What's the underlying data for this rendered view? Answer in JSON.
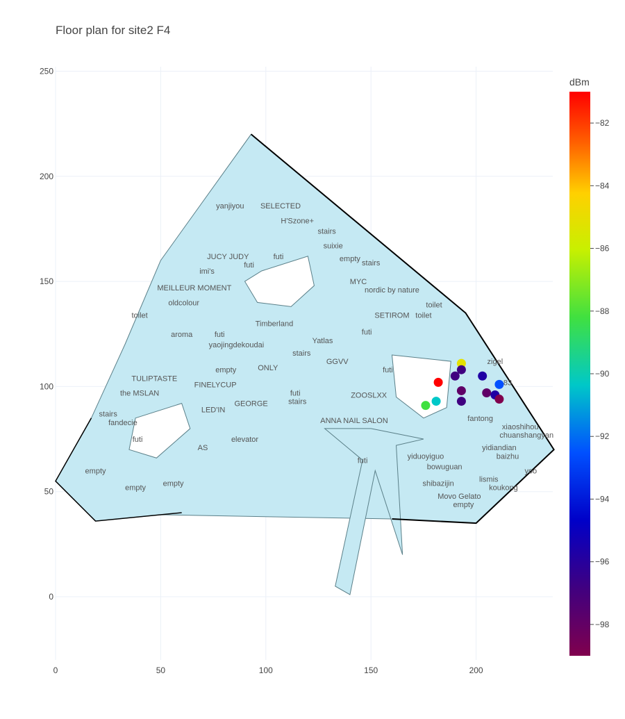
{
  "title": "Floor plan for site2 F4",
  "colorbar": {
    "title": "dBm",
    "min": -99,
    "max": -81,
    "ticks": [
      -82,
      -84,
      -86,
      -88,
      -90,
      -92,
      -94,
      -96,
      -98
    ],
    "tick_labels": [
      "−82",
      "−84",
      "−86",
      "−88",
      "−90",
      "−92",
      "−94",
      "−96",
      "−98"
    ]
  },
  "axes": {
    "x_ticks": [
      0,
      50,
      100,
      150,
      200
    ],
    "y_ticks": [
      0,
      50,
      100,
      150,
      200,
      250
    ],
    "xlim": [
      0,
      236
    ],
    "ylim": [
      -30,
      252
    ]
  },
  "boundary": [
    [
      0,
      55
    ],
    [
      17,
      85
    ],
    [
      33,
      120
    ],
    [
      50,
      160
    ],
    [
      93,
      220
    ],
    [
      195,
      135
    ],
    [
      237,
      70
    ],
    [
      200,
      35
    ],
    [
      160,
      37
    ],
    [
      50,
      39
    ],
    [
      19,
      36
    ],
    [
      0,
      55
    ]
  ],
  "corridor_extension": [
    [
      150,
      80
    ],
    [
      175,
      75
    ],
    [
      162,
      72
    ],
    [
      165,
      20
    ],
    [
      152,
      60
    ],
    [
      140,
      1
    ],
    [
      133,
      5
    ],
    [
      146,
      65
    ],
    [
      128,
      80
    ]
  ],
  "shops": [
    {
      "name": "yanjiyou",
      "x": 83,
      "y": 186
    },
    {
      "name": "SELECTED",
      "x": 107,
      "y": 186
    },
    {
      "name": "H'Szone+",
      "x": 115,
      "y": 179
    },
    {
      "name": "stairs",
      "x": 129,
      "y": 174
    },
    {
      "name": "suixie",
      "x": 132,
      "y": 167
    },
    {
      "name": "empty",
      "x": 140,
      "y": 161
    },
    {
      "name": "stairs",
      "x": 150,
      "y": 159
    },
    {
      "name": "JUCY JUDY",
      "x": 82,
      "y": 162
    },
    {
      "name": "futi",
      "x": 92,
      "y": 158
    },
    {
      "name": "futi",
      "x": 106,
      "y": 162
    },
    {
      "name": "imi's",
      "x": 72,
      "y": 155
    },
    {
      "name": "MYC",
      "x": 144,
      "y": 150
    },
    {
      "name": "nordic by nature",
      "x": 160,
      "y": 146
    },
    {
      "name": "MEILLEUR MOMENT",
      "x": 66,
      "y": 147
    },
    {
      "name": "oldcolour",
      "x": 61,
      "y": 140
    },
    {
      "name": "toilet",
      "x": 40,
      "y": 134
    },
    {
      "name": "toilet",
      "x": 180,
      "y": 139
    },
    {
      "name": "SETIROM",
      "x": 160,
      "y": 134
    },
    {
      "name": "toilet",
      "x": 175,
      "y": 134
    },
    {
      "name": "Timberland",
      "x": 104,
      "y": 130
    },
    {
      "name": "aroma",
      "x": 60,
      "y": 125
    },
    {
      "name": "futi",
      "x": 78,
      "y": 125
    },
    {
      "name": "futi",
      "x": 148,
      "y": 126
    },
    {
      "name": "Yatlas",
      "x": 127,
      "y": 122
    },
    {
      "name": "yaojingdekoudai",
      "x": 86,
      "y": 120
    },
    {
      "name": "stairs",
      "x": 117,
      "y": 116
    },
    {
      "name": "GGVV",
      "x": 134,
      "y": 112
    },
    {
      "name": "empty",
      "x": 81,
      "y": 108
    },
    {
      "name": "ONLY",
      "x": 101,
      "y": 109
    },
    {
      "name": "futi",
      "x": 158,
      "y": 108
    },
    {
      "name": "zigel",
      "x": 209,
      "y": 112
    },
    {
      "name": "TULIPTASTE",
      "x": 47,
      "y": 104
    },
    {
      "name": "FINELYCUP",
      "x": 76,
      "y": 101
    },
    {
      "name": "the MSLAN",
      "x": 40,
      "y": 97
    },
    {
      "name": "futi",
      "x": 114,
      "y": 97
    },
    {
      "name": "ZOOSLXX",
      "x": 149,
      "y": 96
    },
    {
      "name": "83",
      "x": 215,
      "y": 102
    },
    {
      "name": "GEORGE",
      "x": 93,
      "y": 92
    },
    {
      "name": "stairs",
      "x": 115,
      "y": 93
    },
    {
      "name": "LED'IN",
      "x": 75,
      "y": 89
    },
    {
      "name": "stairs",
      "x": 25,
      "y": 87
    },
    {
      "name": "fandecie",
      "x": 32,
      "y": 83
    },
    {
      "name": "ANNA NAIL SALON",
      "x": 142,
      "y": 84
    },
    {
      "name": "fantong",
      "x": 202,
      "y": 85
    },
    {
      "name": "xiaoshihou",
      "x": 221,
      "y": 81
    },
    {
      "name": "chuanshangyan",
      "x": 224,
      "y": 77
    },
    {
      "name": "futi",
      "x": 39,
      "y": 75
    },
    {
      "name": "elevator",
      "x": 90,
      "y": 75
    },
    {
      "name": "AS",
      "x": 70,
      "y": 71
    },
    {
      "name": "yidiandian",
      "x": 211,
      "y": 71
    },
    {
      "name": "yiduoyiguo",
      "x": 176,
      "y": 67
    },
    {
      "name": "baizhu",
      "x": 215,
      "y": 67
    },
    {
      "name": "futi",
      "x": 146,
      "y": 65
    },
    {
      "name": "bowuguan",
      "x": 185,
      "y": 62
    },
    {
      "name": "empty",
      "x": 19,
      "y": 60
    },
    {
      "name": "yoo",
      "x": 226,
      "y": 60
    },
    {
      "name": "lismis",
      "x": 206,
      "y": 56
    },
    {
      "name": "empty",
      "x": 56,
      "y": 54
    },
    {
      "name": "empty",
      "x": 38,
      "y": 52
    },
    {
      "name": "shibazijin",
      "x": 182,
      "y": 54
    },
    {
      "name": "koukong",
      "x": 213,
      "y": 52
    },
    {
      "name": "Movo Gelato",
      "x": 192,
      "y": 48
    },
    {
      "name": "empty",
      "x": 194,
      "y": 44
    }
  ],
  "chart_data": {
    "type": "scatter",
    "title": "Floor plan for site2 F4",
    "xlabel": "",
    "ylabel": "",
    "xlim": [
      0,
      236
    ],
    "ylim": [
      -30,
      252
    ],
    "colorbar_title": "dBm",
    "points": [
      {
        "x": 193,
        "y": 111,
        "dbm": -86
      },
      {
        "x": 193,
        "y": 108,
        "dbm": -97
      },
      {
        "x": 190,
        "y": 105,
        "dbm": -97
      },
      {
        "x": 182,
        "y": 102,
        "dbm": -81
      },
      {
        "x": 203,
        "y": 105,
        "dbm": -96
      },
      {
        "x": 211,
        "y": 101,
        "dbm": -93
      },
      {
        "x": 193,
        "y": 98,
        "dbm": -98
      },
      {
        "x": 205,
        "y": 97,
        "dbm": -98
      },
      {
        "x": 209,
        "y": 96,
        "dbm": -96
      },
      {
        "x": 211,
        "y": 94,
        "dbm": -99
      },
      {
        "x": 193,
        "y": 93,
        "dbm": -97
      },
      {
        "x": 181,
        "y": 93,
        "dbm": -91
      },
      {
        "x": 176,
        "y": 91,
        "dbm": -89
      }
    ]
  }
}
